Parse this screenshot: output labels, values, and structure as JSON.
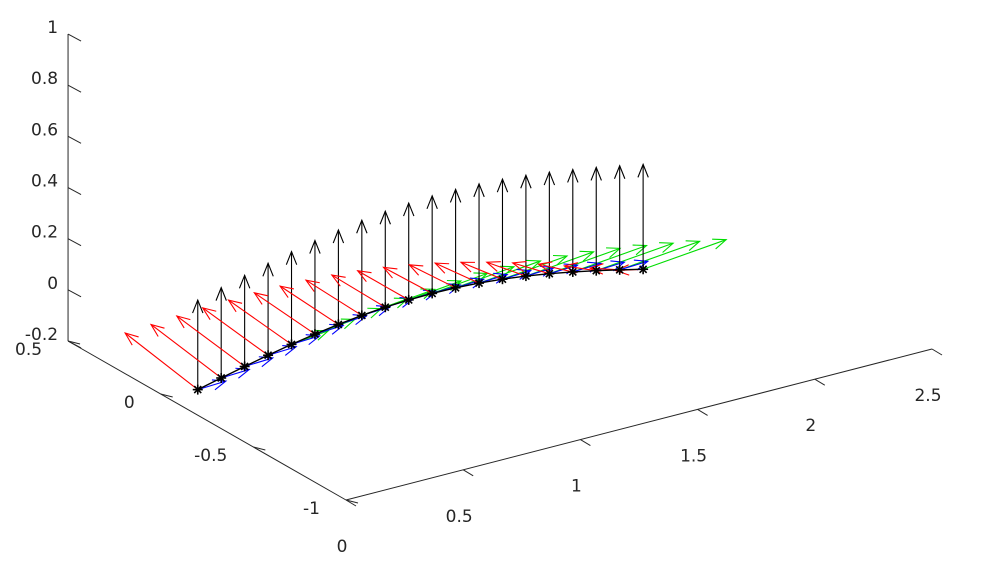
{
  "chart_data": {
    "type": "line",
    "projection": "3d",
    "title": "",
    "xlabel": "",
    "ylabel": "",
    "zlabel": "",
    "grid": false,
    "legend": "none",
    "xlim": [
      0,
      2.5
    ],
    "ylim": [
      -1,
      0.5
    ],
    "zlim": [
      -0.2,
      1
    ],
    "x_ticks": [
      "0",
      "0.5",
      "1",
      "1.5",
      "2",
      "2.5"
    ],
    "y_ticks": [
      "-1",
      "-0.5",
      "0",
      "0.5"
    ],
    "z_ticks": [
      "-0.2",
      "0",
      "0.2",
      "0.4",
      "0.6",
      "0.8",
      "1"
    ],
    "colors": {
      "path": "#000000",
      "marker": "#000000",
      "red_arrows": "#ff0000",
      "green_arrows": "#00dd00",
      "blue_arrows": "#0000ff",
      "black_arrows": "#000000",
      "axis": "#262626"
    },
    "series": [
      {
        "marker": "asterisk",
        "x": [
          0.0,
          0.1,
          0.2,
          0.3,
          0.4,
          0.5,
          0.6,
          0.7,
          0.8,
          0.9,
          1.0,
          1.1,
          1.2,
          1.3,
          1.4,
          1.5,
          1.6,
          1.7,
          1.8,
          1.9
        ],
        "y": [
          -0.2,
          -0.2,
          -0.2,
          -0.2,
          -0.2,
          -0.2,
          -0.2,
          -0.2,
          -0.2,
          -0.2,
          -0.2,
          -0.2,
          -0.2,
          -0.2,
          -0.2,
          -0.2,
          -0.2,
          -0.2,
          -0.2,
          -0.2
        ],
        "z": [
          -0.1,
          -0.1,
          -0.1,
          -0.1,
          -0.1,
          -0.1,
          -0.1,
          -0.1,
          -0.1,
          -0.1,
          -0.1,
          -0.1,
          -0.1,
          -0.1,
          -0.1,
          -0.1,
          -0.1,
          -0.1,
          -0.1,
          -0.1
        ]
      }
    ]
  }
}
